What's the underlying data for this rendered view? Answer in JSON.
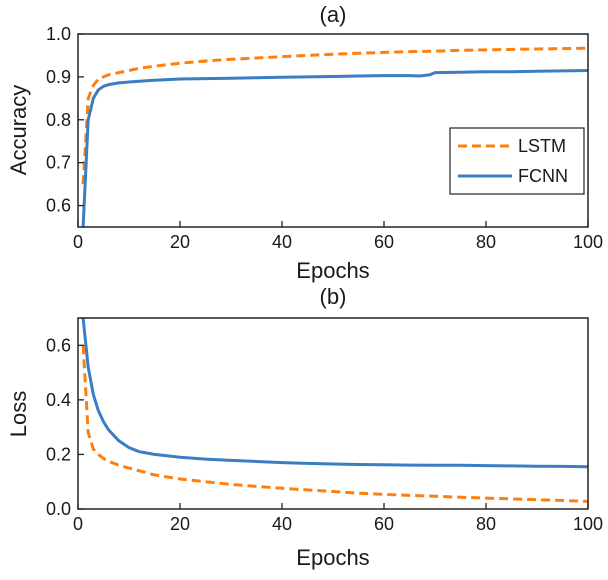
{
  "chart_data": [
    {
      "type": "line",
      "title": "(a)",
      "xlabel": "Epochs",
      "ylabel": "Accuracy",
      "xlim": [
        0,
        100
      ],
      "ylim": [
        0.55,
        1.0
      ],
      "xticks": [
        0,
        20,
        40,
        60,
        80,
        100
      ],
      "yticks": [
        0.6,
        0.7,
        0.8,
        0.9,
        1.0
      ],
      "ytick_labels": [
        "0.6",
        "0.7",
        "0.8",
        "0.9",
        "1.0"
      ],
      "grid": false,
      "legend": "center-right",
      "series": [
        {
          "name": "LSTM",
          "style": "dashed",
          "color": "#ff7f0e",
          "x": [
            1,
            2,
            3,
            4,
            5,
            6,
            8,
            10,
            12,
            15,
            20,
            25,
            30,
            35,
            40,
            45,
            50,
            55,
            60,
            65,
            70,
            75,
            80,
            85,
            90,
            95,
            100
          ],
          "y": [
            0.65,
            0.85,
            0.88,
            0.895,
            0.9,
            0.905,
            0.91,
            0.915,
            0.92,
            0.925,
            0.932,
            0.937,
            0.941,
            0.944,
            0.947,
            0.95,
            0.953,
            0.955,
            0.957,
            0.959,
            0.96,
            0.962,
            0.963,
            0.964,
            0.965,
            0.966,
            0.967
          ]
        },
        {
          "name": "FCNN",
          "style": "solid",
          "color": "#3a7dc3",
          "x": [
            1,
            2,
            3,
            4,
            5,
            6,
            8,
            10,
            12,
            15,
            20,
            25,
            30,
            35,
            40,
            45,
            50,
            55,
            60,
            65,
            67,
            69,
            70,
            75,
            80,
            85,
            90,
            95,
            100
          ],
          "y": [
            0.55,
            0.8,
            0.85,
            0.87,
            0.878,
            0.882,
            0.886,
            0.888,
            0.89,
            0.892,
            0.895,
            0.896,
            0.897,
            0.898,
            0.899,
            0.9,
            0.901,
            0.902,
            0.903,
            0.903,
            0.902,
            0.905,
            0.91,
            0.911,
            0.912,
            0.912,
            0.913,
            0.914,
            0.915
          ]
        }
      ]
    },
    {
      "type": "line",
      "title": "(b)",
      "xlabel": "Epochs",
      "ylabel": "Loss",
      "xlim": [
        0,
        100
      ],
      "ylim": [
        0,
        0.7
      ],
      "xticks": [
        0,
        20,
        40,
        60,
        80,
        100
      ],
      "yticks": [
        0.0,
        0.2,
        0.4,
        0.6
      ],
      "ytick_labels": [
        "0.0",
        "0.2",
        "0.4",
        "0.6"
      ],
      "grid": false,
      "series": [
        {
          "name": "LSTM",
          "style": "dashed",
          "color": "#ff7f0e",
          "x": [
            1,
            2,
            3,
            4,
            5,
            6,
            8,
            10,
            12,
            15,
            20,
            25,
            30,
            35,
            40,
            45,
            50,
            55,
            60,
            65,
            70,
            75,
            80,
            85,
            90,
            95,
            100
          ],
          "y": [
            0.6,
            0.28,
            0.22,
            0.2,
            0.185,
            0.175,
            0.16,
            0.15,
            0.14,
            0.125,
            0.11,
            0.1,
            0.09,
            0.083,
            0.076,
            0.07,
            0.064,
            0.058,
            0.054,
            0.05,
            0.047,
            0.043,
            0.04,
            0.037,
            0.034,
            0.031,
            0.028
          ]
        },
        {
          "name": "FCNN",
          "style": "solid",
          "color": "#3a7dc3",
          "x": [
            1,
            2,
            3,
            4,
            5,
            6,
            8,
            10,
            12,
            15,
            20,
            25,
            30,
            35,
            40,
            45,
            50,
            55,
            60,
            65,
            70,
            75,
            80,
            85,
            90,
            95,
            100
          ],
          "y": [
            0.7,
            0.52,
            0.42,
            0.36,
            0.32,
            0.29,
            0.25,
            0.225,
            0.21,
            0.2,
            0.19,
            0.183,
            0.178,
            0.174,
            0.17,
            0.167,
            0.165,
            0.163,
            0.162,
            0.161,
            0.16,
            0.16,
            0.159,
            0.158,
            0.157,
            0.156,
            0.155
          ]
        }
      ]
    }
  ]
}
